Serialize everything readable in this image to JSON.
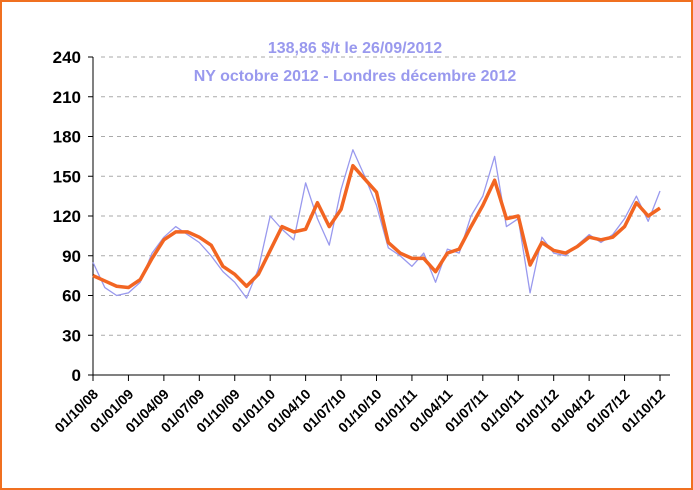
{
  "chart_data": {
    "type": "line",
    "title": "138,86 $/t le 26/09/2012",
    "subtitle": "NY octobre 2012 - Londres décembre 2012",
    "categories": [
      "01/10/08",
      null,
      null,
      "01/01/09",
      null,
      null,
      "01/04/09",
      null,
      null,
      "01/07/09",
      null,
      null,
      "01/10/09",
      null,
      null,
      "01/01/10",
      null,
      null,
      "01/04/10",
      null,
      null,
      "01/07/10",
      null,
      null,
      "01/10/10",
      null,
      null,
      "01/01/11",
      null,
      null,
      "01/04/11",
      null,
      null,
      "01/07/11",
      null,
      null,
      "01/10/11",
      null,
      null,
      "01/01/12",
      null,
      null,
      "01/04/12",
      null,
      null,
      "01/07/12",
      null,
      null,
      "01/10/12"
    ],
    "series": [
      {
        "name": "NY octobre 2012 - Londres décembre 2012",
        "color": "#9999ee",
        "values": [
          85,
          66,
          60,
          62,
          70,
          92,
          104,
          112,
          106,
          100,
          90,
          78,
          70,
          58,
          80,
          120,
          110,
          102,
          145,
          118,
          98,
          140,
          170,
          150,
          128,
          96,
          90,
          82,
          92,
          70,
          95,
          92,
          120,
          135,
          165,
          112,
          118,
          62,
          104,
          92,
          90,
          98,
          106,
          100,
          106,
          118,
          135,
          116,
          138.86
        ]
      },
      {
        "color": "#f26522",
        "values": [
          75,
          71,
          67,
          66,
          72,
          88,
          102,
          108,
          108,
          104,
          98,
          82,
          76,
          67,
          76,
          94,
          112,
          108,
          110,
          130,
          112,
          125,
          158,
          148,
          138,
          100,
          92,
          88,
          88,
          78,
          92,
          95,
          112,
          128,
          147,
          118,
          120,
          83,
          100,
          94,
          92,
          97,
          104,
          102,
          104,
          112,
          130,
          120,
          126
        ]
      }
    ],
    "ylim": [
      0,
      240
    ],
    "yticks": [
      0,
      30,
      60,
      90,
      120,
      150,
      180,
      210,
      240
    ],
    "grid": true
  }
}
